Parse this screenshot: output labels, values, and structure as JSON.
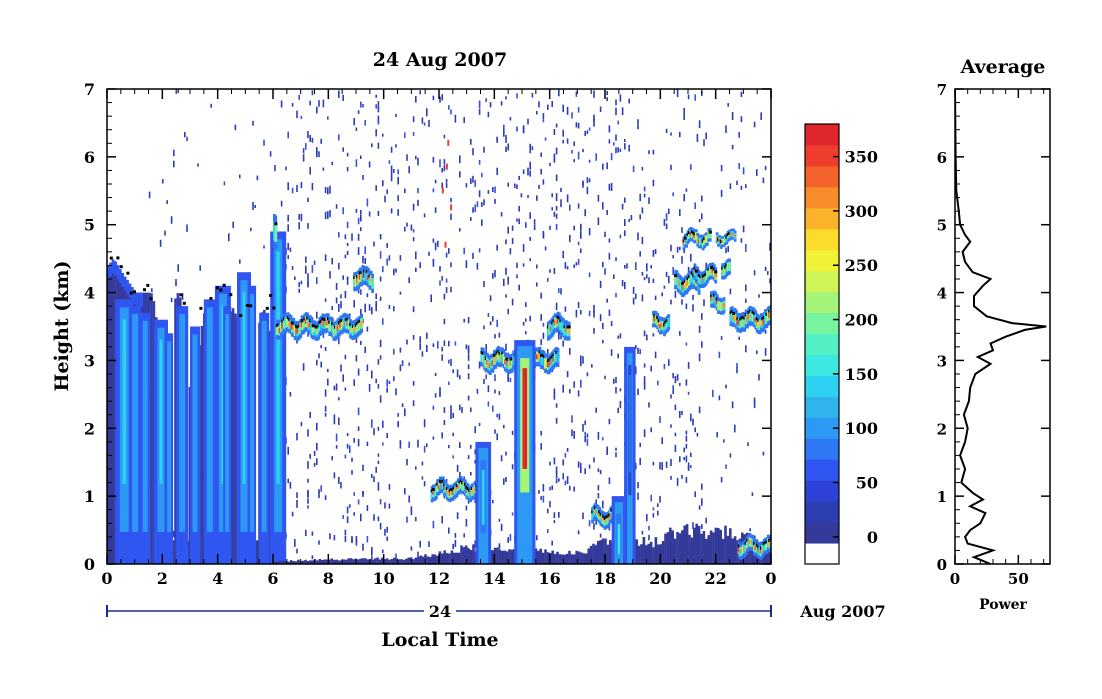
{
  "chart_data": [
    {
      "type": "heatmap",
      "title": "24 Aug 2007",
      "xlabel": "Local Time",
      "ylabel": "Height (km)",
      "xlim": [
        0,
        24
      ],
      "ylim": [
        0,
        7
      ],
      "x_ticks": [
        "0",
        "2",
        "4",
        "6",
        "8",
        "10",
        "12",
        "14",
        "16",
        "18",
        "20",
        "22",
        "0"
      ],
      "y_ticks": [
        "0",
        "1",
        "2",
        "3",
        "4",
        "5",
        "6",
        "7"
      ],
      "day_label": "24",
      "date_label": "Aug 2007",
      "colorbar": {
        "ticks": [
          "0",
          "50",
          "100",
          "150",
          "200",
          "250",
          "300",
          "350"
        ],
        "range": [
          -25,
          380
        ],
        "colors": [
          "#ffffff",
          "#353a9a",
          "#2b3fb0",
          "#2d43d8",
          "#2f56f1",
          "#2f78f5",
          "#2e99f4",
          "#2fb4ec",
          "#2dd2f2",
          "#3de8e0",
          "#52f0c4",
          "#76f4a0",
          "#a4f47a",
          "#cff458",
          "#f0f335",
          "#fbdc2c",
          "#fbb32b",
          "#f88c2a",
          "#f4632b",
          "#ef3d2c",
          "#df252e"
        ]
      },
      "mixed_layer": [
        [
          0,
          4.4
        ],
        [
          0.2,
          4.5
        ],
        [
          0.5,
          4.3
        ],
        [
          1,
          4.0
        ],
        [
          1.5,
          4.0
        ],
        [
          2,
          4.05
        ],
        [
          2.5,
          4.0
        ],
        [
          3,
          3.85
        ],
        [
          3.3,
          3.7
        ],
        [
          3.7,
          3.8
        ],
        [
          4,
          4.05
        ],
        [
          4.3,
          4.0
        ],
        [
          4.6,
          3.7
        ],
        [
          5,
          3.9
        ],
        [
          5.4,
          3.6
        ],
        [
          5.8,
          3.9
        ],
        [
          6,
          3.8
        ]
      ],
      "tall_echoes": [
        [
          0.3,
          3.9,
          18
        ],
        [
          0.8,
          3.8,
          12
        ],
        [
          1.2,
          3.7,
          10
        ],
        [
          1.7,
          3.6,
          14
        ],
        [
          2.1,
          3.4,
          8
        ],
        [
          2.5,
          3.8,
          12
        ],
        [
          3.0,
          3.5,
          10
        ],
        [
          3.5,
          3.9,
          12
        ],
        [
          3.9,
          4.1,
          16
        ],
        [
          4.2,
          3.8,
          8
        ],
        [
          4.7,
          4.3,
          14
        ],
        [
          5.1,
          4.1,
          8
        ],
        [
          5.5,
          3.7,
          10
        ],
        [
          5.9,
          4.9,
          16
        ]
      ],
      "cloud_layers": [
        {
          "x0": 6.0,
          "x1": 6.1,
          "y": 4.95,
          "thickness": 0.25
        },
        {
          "x0": 6.1,
          "x1": 9.2,
          "y": 3.5,
          "thickness": 0.14
        },
        {
          "x0": 8.9,
          "x1": 9.6,
          "y": 4.2,
          "thickness": 0.14
        },
        {
          "x0": 11.7,
          "x1": 13.4,
          "y": 1.1,
          "thickness": 0.12
        },
        {
          "x0": 13.5,
          "x1": 16.3,
          "y": 3.0,
          "thickness": 0.14
        },
        {
          "x0": 15.9,
          "x1": 16.7,
          "y": 3.5,
          "thickness": 0.14
        },
        {
          "x0": 17.5,
          "x1": 18.6,
          "y": 0.7,
          "thickness": 0.12
        },
        {
          "x0": 19.7,
          "x1": 20.3,
          "y": 3.55,
          "thickness": 0.12
        },
        {
          "x0": 20.5,
          "x1": 21.4,
          "y": 4.15,
          "thickness": 0.14
        },
        {
          "x0": 20.8,
          "x1": 21.8,
          "y": 4.8,
          "thickness": 0.1
        },
        {
          "x0": 21.2,
          "x1": 22.0,
          "y": 4.25,
          "thickness": 0.12
        },
        {
          "x0": 22.0,
          "x1": 22.7,
          "y": 4.8,
          "thickness": 0.08
        },
        {
          "x0": 22.2,
          "x1": 22.5,
          "y": 4.35,
          "thickness": 0.12
        },
        {
          "x0": 21.8,
          "x1": 22.3,
          "y": 3.85,
          "thickness": 0.12
        },
        {
          "x0": 22.5,
          "x1": 24.0,
          "y": 3.6,
          "thickness": 0.14
        },
        {
          "x0": 22.8,
          "x1": 24.0,
          "y": 0.25,
          "thickness": 0.12
        }
      ],
      "precip_columns": [
        {
          "x": 13.6,
          "top": 1.8,
          "width": 0.35,
          "peak": 130
        },
        {
          "x": 15.1,
          "top": 3.3,
          "width": 0.55,
          "peak": 380
        },
        {
          "x": 18.5,
          "top": 1.0,
          "width": 0.3,
          "peak": 160
        },
        {
          "x": 18.9,
          "top": 3.2,
          "width": 0.2,
          "peak": 80
        }
      ],
      "surface_echo": [
        [
          6,
          0.05
        ],
        [
          9,
          0.1
        ],
        [
          11,
          0.1
        ],
        [
          13,
          0.3
        ],
        [
          17,
          0.2
        ],
        [
          18,
          0.4
        ],
        [
          19.8,
          0.4
        ],
        [
          20.4,
          0.6
        ],
        [
          22,
          0.6
        ],
        [
          24,
          0.4
        ]
      ]
    },
    {
      "type": "line",
      "title": "Average",
      "xlabel": "Power",
      "ylabel": "",
      "xlim": [
        0,
        75
      ],
      "ylim": [
        0,
        7
      ],
      "x_ticks": [
        "0",
        "50"
      ],
      "y_ticks": [
        "0",
        "1",
        "2",
        "3",
        "4",
        "5",
        "6",
        "7"
      ],
      "profile": [
        [
          0,
          28
        ],
        [
          0.1,
          15
        ],
        [
          0.2,
          30
        ],
        [
          0.3,
          10
        ],
        [
          0.4,
          8
        ],
        [
          0.5,
          12
        ],
        [
          0.6,
          20
        ],
        [
          0.75,
          24
        ],
        [
          0.85,
          12
        ],
        [
          0.95,
          22
        ],
        [
          1.05,
          14
        ],
        [
          1.2,
          5
        ],
        [
          1.4,
          8
        ],
        [
          1.6,
          4
        ],
        [
          1.8,
          8
        ],
        [
          2.0,
          10
        ],
        [
          2.2,
          7
        ],
        [
          2.4,
          11
        ],
        [
          2.6,
          12
        ],
        [
          2.8,
          16
        ],
        [
          2.95,
          28
        ],
        [
          3.05,
          18
        ],
        [
          3.15,
          30
        ],
        [
          3.25,
          28
        ],
        [
          3.35,
          40
        ],
        [
          3.45,
          55
        ],
        [
          3.5,
          72
        ],
        [
          3.55,
          45
        ],
        [
          3.65,
          25
        ],
        [
          3.8,
          15
        ],
        [
          3.95,
          15
        ],
        [
          4.1,
          22
        ],
        [
          4.2,
          28
        ],
        [
          4.3,
          14
        ],
        [
          4.45,
          8
        ],
        [
          4.6,
          6
        ],
        [
          4.75,
          12
        ],
        [
          4.85,
          8
        ],
        [
          5.0,
          4
        ],
        [
          5.2,
          3
        ],
        [
          5.5,
          1
        ],
        [
          6,
          0.5
        ],
        [
          7,
          0
        ]
      ]
    }
  ]
}
